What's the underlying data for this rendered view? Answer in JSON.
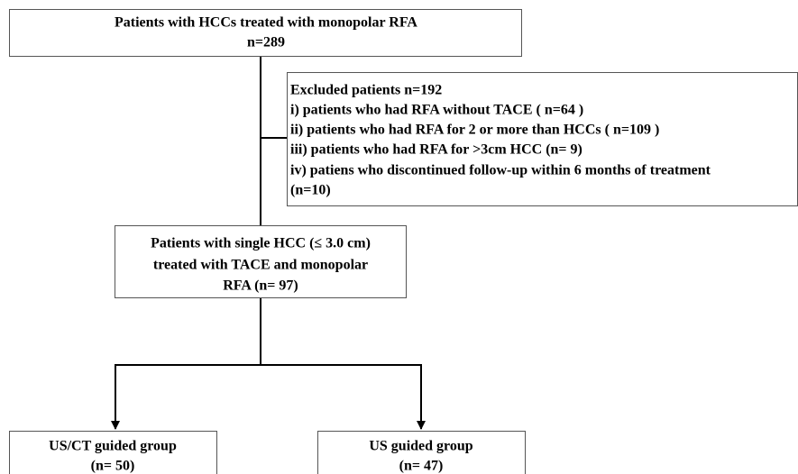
{
  "nodes": [
    {
      "lines": [
        "Patients with HCCs treated with monopolar RFA",
        "n=289"
      ]
    },
    {
      "lines": [
        "Excluded patients n=192",
        "i) patients who had RFA without TACE ( n=64 )",
        "ii) patients who had RFA for 2 or more than HCCs ( n=109 )",
        "iii) patients who had RFA for >3cm HCC  (n= 9)",
        "iv) patiens who discontinued follow-up within 6 months of treatment",
        "(n=10)"
      ]
    },
    {
      "lines": [
        "Patients with single HCC (≤ 3.0 cm)",
        "treated with TACE and monopolar",
        "RFA (n= 97)"
      ]
    },
    {
      "lines": [
        "US/CT guided group",
        "(n= 50)"
      ]
    },
    {
      "lines": [
        "US guided group",
        "(n= 47)"
      ]
    }
  ]
}
